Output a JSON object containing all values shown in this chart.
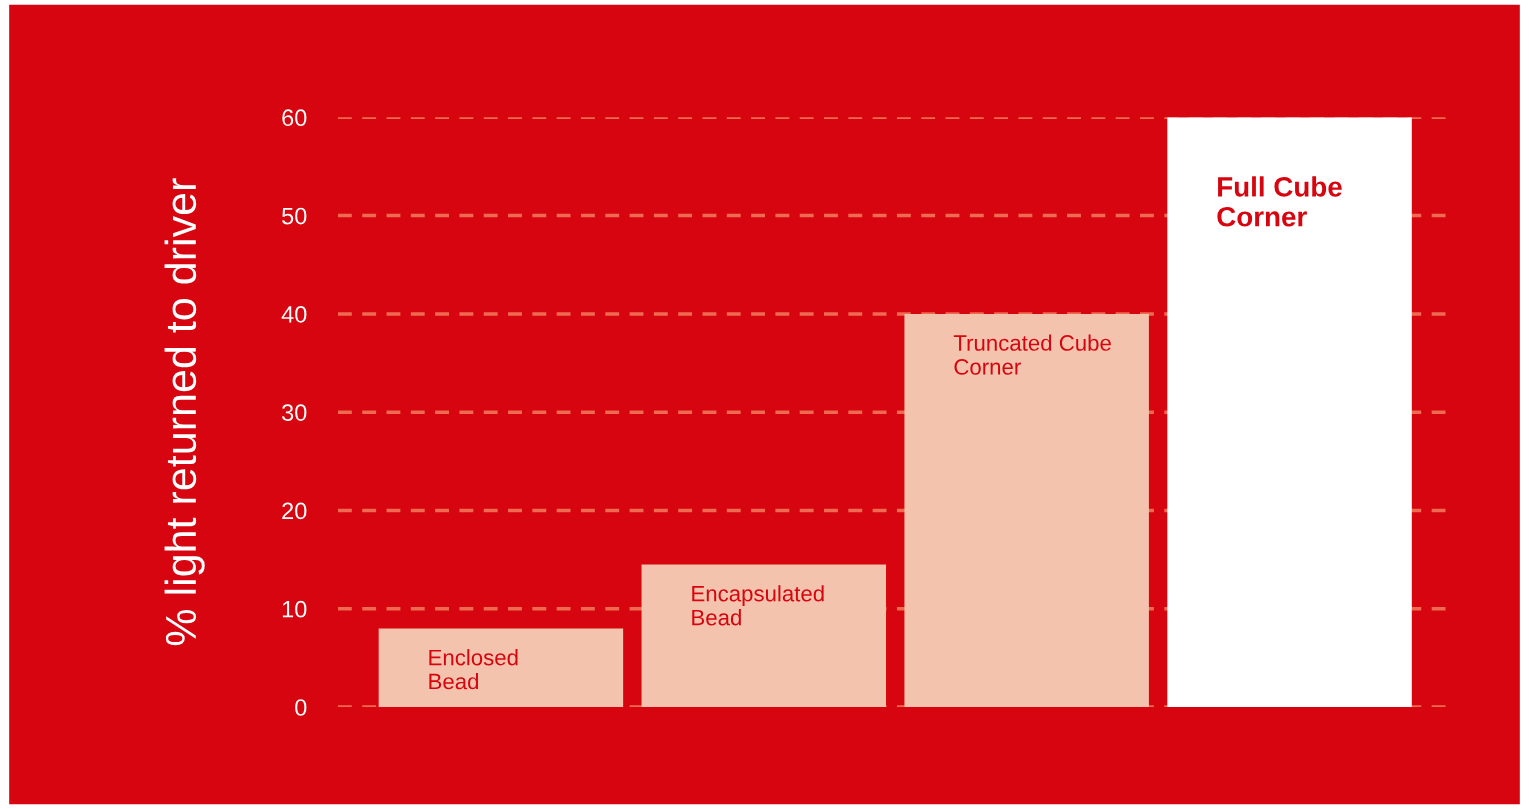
{
  "chart_data": {
    "type": "bar",
    "ylabel": "% light returned to driver",
    "categories": [
      "Enclosed\nBead",
      "Encapsulated\nBead",
      "Truncated Cube\nCorner",
      "Full Cube\nCorner"
    ],
    "values": [
      8,
      14.5,
      40,
      60
    ],
    "colors": [
      "#f4c3ad",
      "#f4c3ad",
      "#f4c3ad",
      "#ffffff"
    ],
    "ylim": [
      0,
      60
    ],
    "yticks": [
      0,
      10,
      20,
      30,
      40,
      50,
      60
    ],
    "grid": "y",
    "tick_labels": "y"
  }
}
